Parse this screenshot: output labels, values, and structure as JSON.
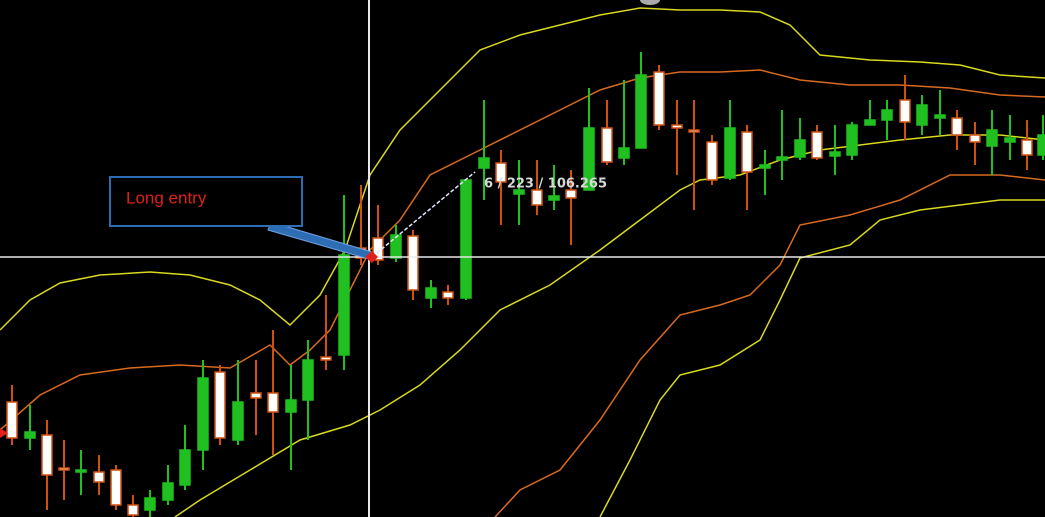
{
  "callout": {
    "label": "Long entry"
  },
  "crosshair": {
    "readout": "6 / 223 / 106.265"
  }
}
